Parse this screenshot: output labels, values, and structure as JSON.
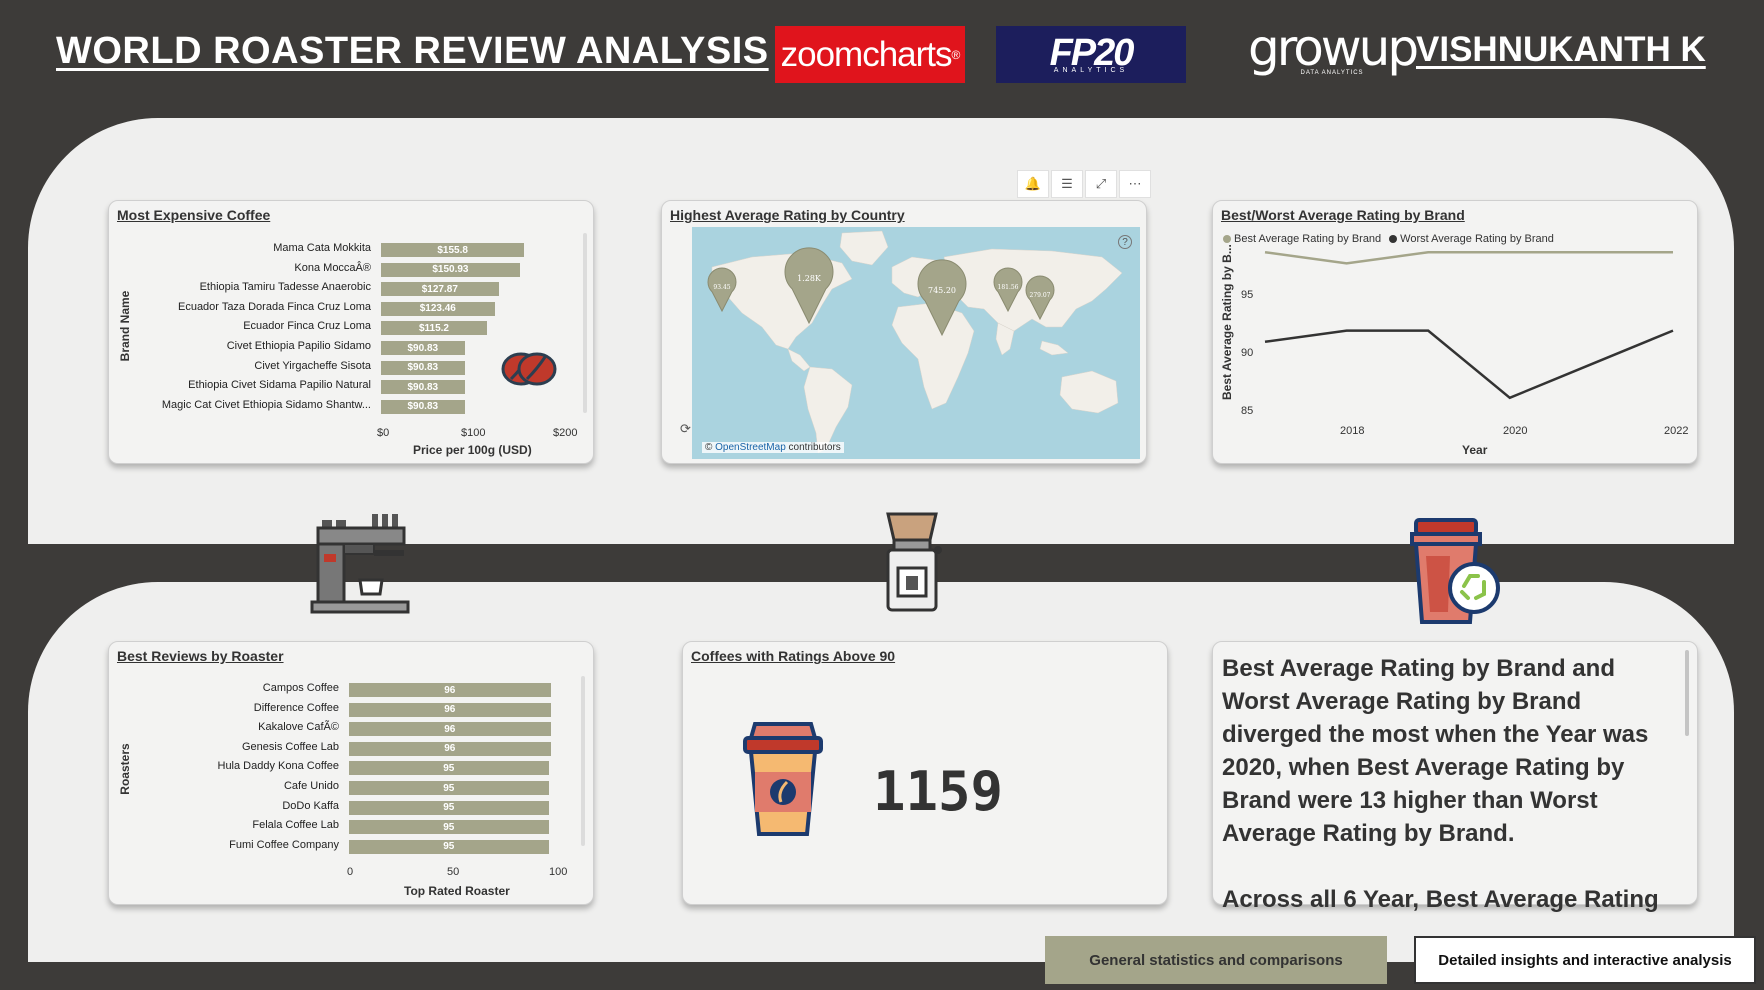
{
  "header": {
    "title": "WORLD ROASTER REVIEW ANALYSIS",
    "logo_zoom": "zoomcharts",
    "logo_fp20_main": "FP20",
    "logo_fp20_sub": "ANALYTICS",
    "logo_growup_main": "growup",
    "logo_growup_sub": "DATA ANALYTICS",
    "author": "VISHNUKANTH K"
  },
  "expensive": {
    "title": "Most Expensive Coffee",
    "y_title": "Brand Name",
    "x_title": "Price per 100g (USD)",
    "x_ticks": [
      "$0",
      "$100",
      "$200"
    ],
    "xlim": [
      0,
      200
    ],
    "labels": [
      "Mama Cata Mokkita",
      "Kona MoccaÂ®",
      "Ethiopia Tamiru Tadesse Anaerobic",
      "Ecuador Taza Dorada Finca Cruz Loma",
      "Ecuador Finca Cruz Loma",
      "Civet Ethiopia Papilio Sidamo",
      "Civet Yirgacheffe Sisota",
      "Ethiopia Civet Sidama Papilio Natural",
      "Magic Cat Civet Ethiopia Sidamo Shantw..."
    ],
    "values": [
      155.8,
      150.93,
      127.87,
      123.46,
      115.2,
      90.83,
      90.83,
      90.83,
      90.83
    ],
    "value_labels": [
      "$155.8",
      "$150.93",
      "$127.87",
      "$123.46",
      "$115.2",
      "$90.83",
      "$90.83",
      "$90.83",
      "$90.83"
    ]
  },
  "map": {
    "title": "Highest Average Rating by Country",
    "attribution_prefix": "© ",
    "attribution_link": "OpenStreetMap",
    "attribution_suffix": " contributors",
    "pins": [
      {
        "label": "93.45"
      },
      {
        "label": "1.28K"
      },
      {
        "label": "745.20"
      },
      {
        "label": "181.56"
      },
      {
        "label": "279.07"
      }
    ]
  },
  "toolbar": {
    "icons": [
      "bell-icon",
      "filter-icon",
      "expand-icon",
      "more-icon"
    ]
  },
  "best_worst": {
    "title": "Best/Worst Average Rating by Brand",
    "legend_best": "Best Average Rating by Brand",
    "legend_worst": "Worst Average Rating by Brand",
    "y_title": "Best Average Rating by B...",
    "x_title": "Year",
    "x_ticks": [
      "2018",
      "2020",
      "2022"
    ],
    "y_ticks": [
      "95",
      "90",
      "85"
    ],
    "colors": {
      "best": "#a4a58a",
      "worst": "#333333"
    }
  },
  "chart_data": [
    {
      "type": "bar",
      "title": "Most Expensive Coffee",
      "categories": [
        "Mama Cata Mokkita",
        "Kona MoccaÂ®",
        "Ethiopia Tamiru Tadesse Anaerobic",
        "Ecuador Taza Dorada Finca Cruz Loma",
        "Ecuador Finca Cruz Loma",
        "Civet Ethiopia Papilio Sidamo",
        "Civet Yirgacheffe Sisota",
        "Ethiopia Civet Sidama Papilio Natural",
        "Magic Cat Civet Ethiopia Sidamo Shantw..."
      ],
      "values": [
        155.8,
        150.93,
        127.87,
        123.46,
        115.2,
        90.83,
        90.83,
        90.83,
        90.83
      ],
      "xlabel": "Price per 100g (USD)",
      "ylabel": "Brand Name",
      "xlim": [
        0,
        200
      ]
    },
    {
      "type": "line",
      "title": "Best/Worst Average Rating by Brand",
      "x": [
        2017,
        2018,
        2019,
        2020,
        2021,
        2022
      ],
      "series": [
        {
          "name": "Best Average Rating by Brand",
          "values": [
            97,
            96,
            97,
            97,
            97,
            97
          ]
        },
        {
          "name": "Worst Average Rating by Brand",
          "values": [
            89,
            90,
            90,
            84,
            87,
            90
          ]
        }
      ],
      "xlabel": "Year",
      "ylabel": "Best Average Rating by B...",
      "ylim": [
        83,
        98
      ]
    },
    {
      "type": "bar",
      "title": "Best Reviews by Roaster",
      "categories": [
        "Campos Coffee",
        "Difference Coffee",
        "Kakalove CafÃ©",
        "Genesis Coffee Lab",
        "Hula Daddy Kona Coffee",
        "Cafe Unido",
        "DoDo Kaffa",
        "Felala Coffee Lab",
        "Fumi Coffee Company"
      ],
      "values": [
        96,
        96,
        96,
        96,
        95,
        95,
        95,
        95,
        95
      ],
      "xlabel": "Top Rated Roaster",
      "ylabel": "Roasters",
      "xlim": [
        0,
        100
      ]
    }
  ],
  "roasters": {
    "title": "Best Reviews by Roaster",
    "y_title": "Roasters",
    "x_title": "Top Rated Roaster",
    "x_ticks": [
      "0",
      "50",
      "100"
    ],
    "xlim": [
      0,
      100
    ],
    "labels": [
      "Campos Coffee",
      "Difference Coffee",
      "Kakalove CafÃ©",
      "Genesis Coffee Lab",
      "Hula Daddy Kona Coffee",
      "Cafe Unido",
      "DoDo Kaffa",
      "Felala Coffee Lab",
      "Fumi Coffee Company"
    ],
    "values": [
      96,
      96,
      96,
      96,
      95,
      95,
      95,
      95,
      95
    ],
    "value_labels": [
      "96",
      "96",
      "96",
      "96",
      "95",
      "95",
      "95",
      "95",
      "95"
    ]
  },
  "kpi": {
    "title": "Coffees with Ratings Above 90",
    "value": "1159"
  },
  "narrative": {
    "paragraph1": "Best Average Rating by Brand and Worst Average Rating by Brand diverged the most when the Year was 2020, when Best Average Rating by Brand were 13 higher than Worst Average Rating by Brand.",
    "paragraph2": "Across all 6 Year, Best Average Rating"
  },
  "tabs": {
    "general": "General statistics and comparisons",
    "detailed": "Detailed insights and interactive analysis"
  }
}
